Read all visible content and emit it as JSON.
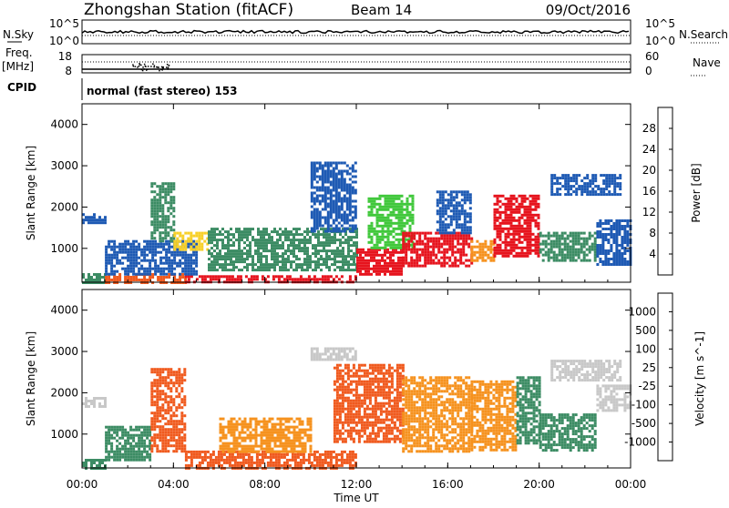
{
  "header": {
    "station": "Zhongshan Station (fitACF)",
    "beam": "Beam 14",
    "date": "09/Oct/2016"
  },
  "noise_panel": {
    "left_label": "N.Sky",
    "right_label": "N.Search",
    "left_ticks": [
      "10^5",
      "10^0"
    ],
    "right_ticks": [
      "10^5",
      "10^0"
    ]
  },
  "freq_panel": {
    "left_label_top": "Freq.",
    "left_label_bottom": "[MHz]",
    "left_ticks": [
      "18",
      "8"
    ],
    "right_label": "Nave",
    "right_ticks": [
      "60",
      "0"
    ]
  },
  "cpid": {
    "label": "CPID",
    "text": "normal (fast stereo) 153"
  },
  "colors": {
    "white": "#ffffff",
    "red": "#e6141e",
    "orange_red": "#f05a1e",
    "orange": "#f6921e",
    "light_orange": "#f9b25a",
    "yellow": "#f7d028",
    "green": "#41c83c",
    "dark_green": "#3c8c64",
    "blue": "#1e5ab4",
    "gray": "#c8c8c8"
  },
  "chart_data": [
    {
      "type": "heatmap",
      "title": "",
      "xlabel": "",
      "ylabel": "Slant Range [km]",
      "x_range_hours": [
        0,
        24
      ],
      "y_range_km": [
        180,
        4500
      ],
      "yticks": [
        1000,
        2000,
        3000,
        4000
      ],
      "colorbar": {
        "label": "Power [dB]",
        "ticks": [
          "4",
          "8",
          "12",
          "16",
          "20",
          "24",
          "28"
        ],
        "colors": [
          "#0000ff",
          "#1e5ab4",
          "#3c8c64",
          "#41c83c",
          "#f7d028",
          "#f6921e",
          "#f05a1e",
          "#e6141e"
        ]
      },
      "echo_regions": [
        {
          "x": [
            0.0,
            1.0
          ],
          "y": [
            1650,
            1850
          ],
          "color": "#1e5ab4"
        },
        {
          "x": [
            0.0,
            1.0
          ],
          "y": [
            200,
            400
          ],
          "color": "#3c8c64"
        },
        {
          "x": [
            1.0,
            4.5
          ],
          "y": [
            200,
            400
          ],
          "color": "#f05a1e"
        },
        {
          "x": [
            4.5,
            12.0
          ],
          "y": [
            200,
            350
          ],
          "color": "#e6141e"
        },
        {
          "x": [
            1.0,
            5.0
          ],
          "y": [
            400,
            1200
          ],
          "color": "#1e5ab4"
        },
        {
          "x": [
            3.0,
            4.0
          ],
          "y": [
            1200,
            2600
          ],
          "color": "#3c8c64"
        },
        {
          "x": [
            4.0,
            5.5
          ],
          "y": [
            1000,
            1400
          ],
          "color": "#f7d028"
        },
        {
          "x": [
            5.5,
            12.0
          ],
          "y": [
            500,
            1500
          ],
          "color": "#3c8c64"
        },
        {
          "x": [
            10.0,
            12.0
          ],
          "y": [
            1400,
            3100
          ],
          "color": "#1e5ab4"
        },
        {
          "x": [
            12.0,
            14.0
          ],
          "y": [
            400,
            1000
          ],
          "color": "#e6141e"
        },
        {
          "x": [
            12.5,
            14.5
          ],
          "y": [
            1000,
            2300
          ],
          "color": "#41c83c"
        },
        {
          "x": [
            14.0,
            17.0
          ],
          "y": [
            600,
            1400
          ],
          "color": "#e6141e"
        },
        {
          "x": [
            15.5,
            17.0
          ],
          "y": [
            1400,
            2400
          ],
          "color": "#1e5ab4"
        },
        {
          "x": [
            17.0,
            18.0
          ],
          "y": [
            700,
            1200
          ],
          "color": "#f6921e"
        },
        {
          "x": [
            18.0,
            20.0
          ],
          "y": [
            800,
            2300
          ],
          "color": "#e6141e"
        },
        {
          "x": [
            20.0,
            22.5
          ],
          "y": [
            700,
            1400
          ],
          "color": "#3c8c64"
        },
        {
          "x": [
            22.5,
            24.0
          ],
          "y": [
            600,
            1700
          ],
          "color": "#1e5ab4"
        },
        {
          "x": [
            20.5,
            23.5
          ],
          "y": [
            2300,
            2800
          ],
          "color": "#1e5ab4"
        }
      ]
    },
    {
      "type": "heatmap",
      "title": "",
      "xlabel": "Time UT",
      "ylabel": "Slant Range [km]",
      "x_range_hours": [
        0,
        24
      ],
      "y_range_km": [
        180,
        4500
      ],
      "yticks": [
        1000,
        2000,
        3000,
        4000
      ],
      "xtick_labels": [
        "00:00",
        "04:00",
        "08:00",
        "12:00",
        "16:00",
        "20:00",
        "00:00"
      ],
      "colorbar": {
        "label": "Velocity [m s^-1]",
        "ticks": [
          "1000",
          "500",
          "100",
          "25",
          "-25",
          "-100",
          "-500",
          "-1000"
        ],
        "colors": [
          "#1e3cc8",
          "#1e5ab4",
          "#3c8c64",
          "#41c83c",
          "#c8c8c8",
          "#f9b25a",
          "#f6921e",
          "#f05a1e",
          "#e6141e"
        ]
      },
      "echo_regions": [
        {
          "x": [
            0.0,
            1.0
          ],
          "y": [
            1650,
            1900
          ],
          "color": "#c8c8c8"
        },
        {
          "x": [
            0.0,
            1.0
          ],
          "y": [
            200,
            400
          ],
          "color": "#3c8c64"
        },
        {
          "x": [
            1.0,
            3.0
          ],
          "y": [
            400,
            1200
          ],
          "color": "#3c8c64"
        },
        {
          "x": [
            3.0,
            4.5
          ],
          "y": [
            600,
            2600
          ],
          "color": "#f05a1e"
        },
        {
          "x": [
            4.5,
            12.0
          ],
          "y": [
            200,
            600
          ],
          "color": "#f05a1e"
        },
        {
          "x": [
            6.0,
            10.0
          ],
          "y": [
            600,
            1400
          ],
          "color": "#f6921e"
        },
        {
          "x": [
            10.0,
            12.0
          ],
          "y": [
            2800,
            3100
          ],
          "color": "#c8c8c8"
        },
        {
          "x": [
            11.0,
            14.0
          ],
          "y": [
            800,
            2700
          ],
          "color": "#f05a1e"
        },
        {
          "x": [
            14.0,
            17.0
          ],
          "y": [
            600,
            2400
          ],
          "color": "#f6921e"
        },
        {
          "x": [
            17.0,
            19.0
          ],
          "y": [
            600,
            2300
          ],
          "color": "#f6921e"
        },
        {
          "x": [
            19.0,
            20.0
          ],
          "y": [
            800,
            2400
          ],
          "color": "#3c8c64"
        },
        {
          "x": [
            20.0,
            22.5
          ],
          "y": [
            600,
            1500
          ],
          "color": "#3c8c64"
        },
        {
          "x": [
            22.5,
            24.0
          ],
          "y": [
            1600,
            2200
          ],
          "color": "#c8c8c8"
        },
        {
          "x": [
            20.5,
            23.5
          ],
          "y": [
            2300,
            2800
          ],
          "color": "#c8c8c8"
        }
      ]
    }
  ]
}
